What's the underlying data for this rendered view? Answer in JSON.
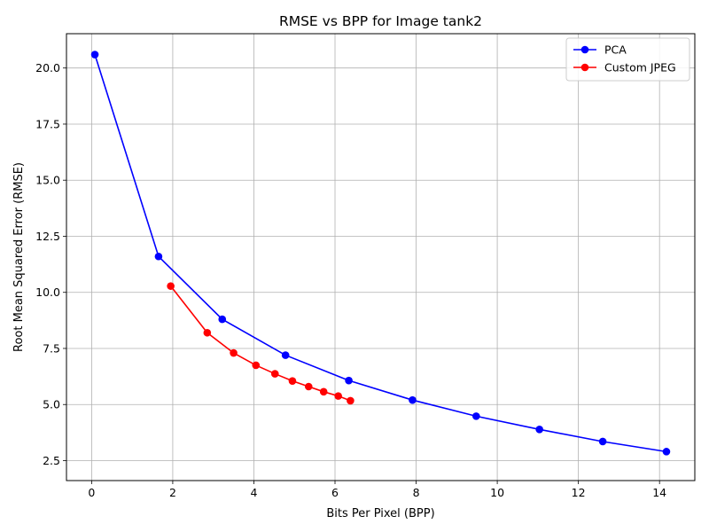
{
  "chart_data": {
    "type": "line",
    "title": "RMSE vs BPP for Image tank2",
    "xlabel": "Bits Per Pixel (BPP)",
    "ylabel": "Root Mean Squared Error (RMSE)",
    "xlim": [
      -0.62,
      14.87
    ],
    "ylim": [
      1.61,
      21.53
    ],
    "xticks": [
      0,
      2,
      4,
      6,
      8,
      10,
      12,
      14
    ],
    "yticks": [
      2.5,
      5.0,
      7.5,
      10.0,
      12.5,
      15.0,
      17.5,
      20.0
    ],
    "xtick_labels": [
      "0",
      "2",
      "4",
      "6",
      "8",
      "10",
      "12",
      "14"
    ],
    "ytick_labels": [
      "2.5",
      "5.0",
      "7.5",
      "10.0",
      "12.5",
      "15.0",
      "17.5",
      "20.0"
    ],
    "grid": true,
    "legend_position": "top-right",
    "series": [
      {
        "name": "PCA",
        "color": "#0000ff",
        "x": [
          0.08,
          1.65,
          3.22,
          4.78,
          6.34,
          7.91,
          9.48,
          11.04,
          12.6,
          14.17
        ],
        "y": [
          20.6,
          11.6,
          8.8,
          7.2,
          6.07,
          5.2,
          4.48,
          3.89,
          3.35,
          2.9
        ]
      },
      {
        "name": "Custom JPEG",
        "color": "#ff0000",
        "x": [
          1.95,
          2.85,
          3.5,
          4.05,
          4.52,
          4.95,
          5.35,
          5.72,
          6.08,
          6.38
        ],
        "y": [
          10.28,
          8.2,
          7.3,
          6.75,
          6.37,
          6.05,
          5.8,
          5.57,
          5.38,
          5.17
        ]
      }
    ]
  }
}
